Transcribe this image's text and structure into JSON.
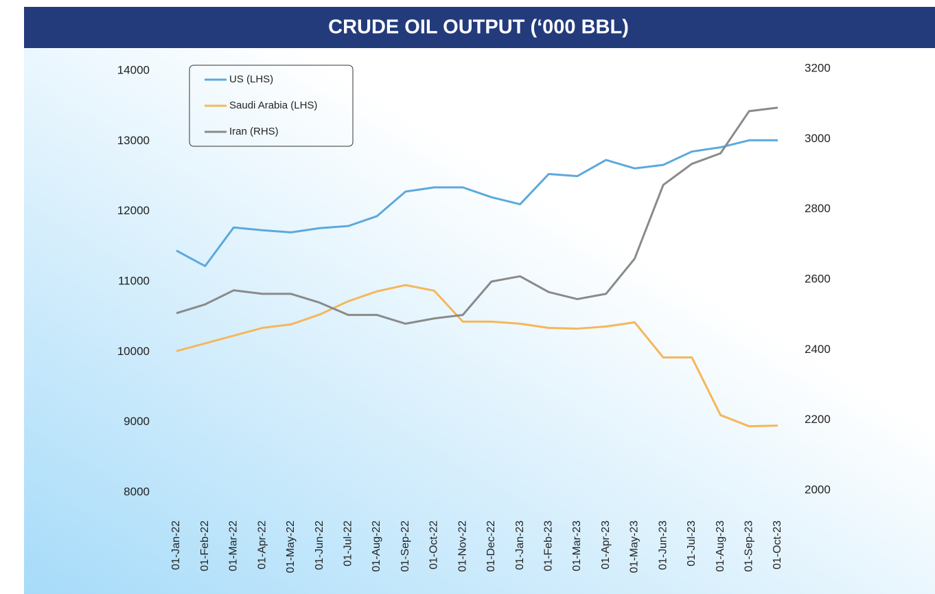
{
  "chart_data": {
    "type": "line",
    "title": "CRUDE OIL OUTPUT (‘000 BBL)",
    "categories": [
      "01-Jan-22",
      "01-Feb-22",
      "01-Mar-22",
      "01-Apr-22",
      "01-May-22",
      "01-Jun-22",
      "01-Jul-22",
      "01-Aug-22",
      "01-Sep-22",
      "01-Oct-22",
      "01-Nov-22",
      "01-Dec-22",
      "01-Jan-23",
      "01-Feb-23",
      "01-Mar-23",
      "01-Apr-23",
      "01-May-23",
      "01-Jun-23",
      "01-Jul-23",
      "01-Aug-23",
      "01-Sep-23",
      "01-Oct-23"
    ],
    "series": [
      {
        "name": "US (LHS)",
        "color": "#5ba9dd",
        "values": [
          11440,
          11220,
          11770,
          11730,
          11700,
          11760,
          11790,
          11930,
          12280,
          12340,
          12340,
          12200,
          12100,
          12530,
          12500,
          12730,
          12610,
          12660,
          12850,
          12910,
          13010,
          13010
        ]
      },
      {
        "name": "Saudi Arabia (LHS)",
        "color": "#f6b65a",
        "values": [
          10010,
          10120,
          10230,
          10340,
          10390,
          10530,
          10720,
          10860,
          10950,
          10870,
          10430,
          10430,
          10400,
          10340,
          10330,
          10360,
          10420,
          9920,
          9920,
          9100,
          8940,
          8950
        ]
      },
      {
        "name": "Iran (RHS)",
        "color": "#8a8a8a",
        "axis": "y2",
        "values": [
          2510,
          2535,
          2575,
          2565,
          2565,
          2540,
          2505,
          2505,
          2480,
          2495,
          2505,
          2600,
          2615,
          2570,
          2550,
          2565,
          2665,
          2875,
          2935,
          2965,
          3085,
          3095
        ]
      }
    ],
    "ylim": [
      8000,
      14000
    ],
    "yticks": [
      8000,
      9000,
      10000,
      11000,
      12000,
      13000,
      14000
    ],
    "y2lim": [
      2000,
      3200
    ],
    "y2ticks": [
      2000,
      2200,
      2400,
      2600,
      2800,
      3000,
      3200
    ],
    "legend": "upper left"
  }
}
